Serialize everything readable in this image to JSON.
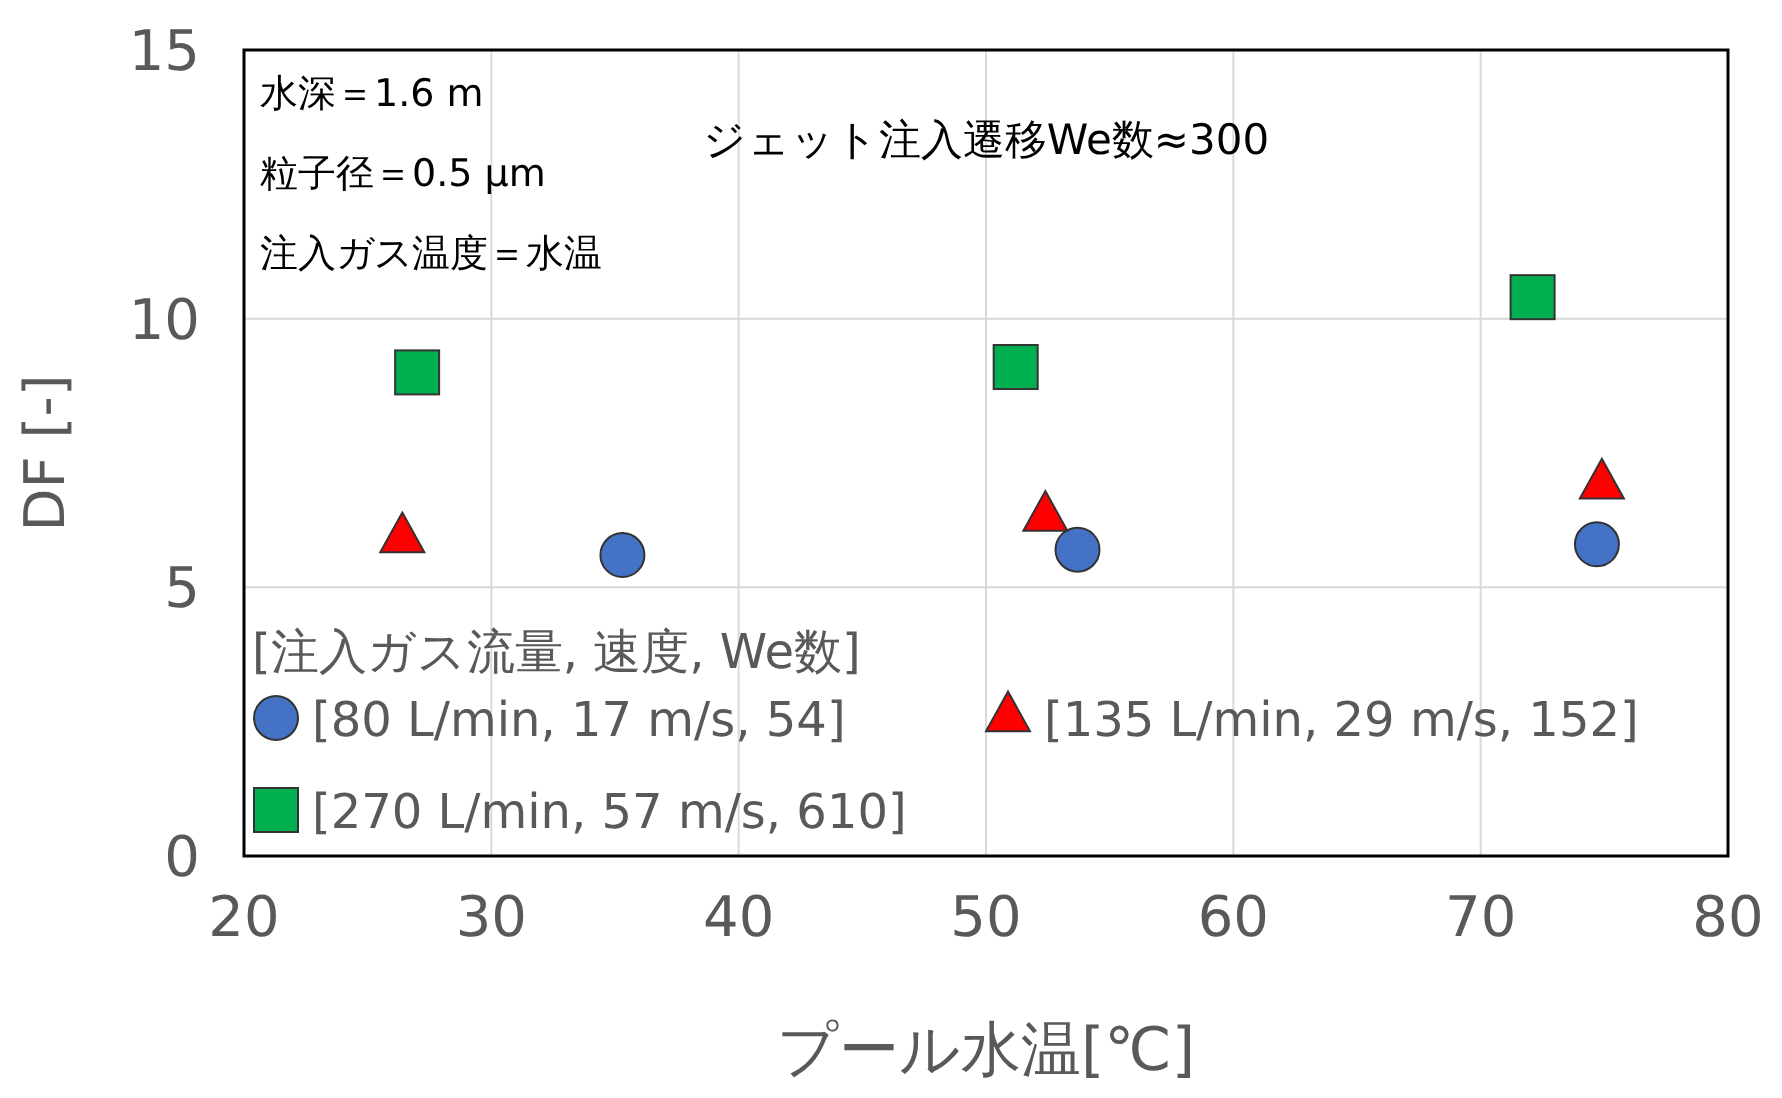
{
  "chart_data": {
    "type": "scatter",
    "xlabel": "プール水温[℃]",
    "ylabel": "DF [-]",
    "xlim": [
      20,
      80
    ],
    "ylim": [
      0,
      15
    ],
    "xticks": [
      20,
      30,
      40,
      50,
      60,
      70,
      80
    ],
    "yticks": [
      0,
      5,
      10,
      15
    ],
    "grid": true,
    "legend": "bottom left",
    "legend_title": "[注入ガス流量, 速度, We数]",
    "annotations": [
      "水深＝1.6 m",
      "粒子径＝0.5 μm",
      "注入ガス温度＝水温",
      "ジェット注入遷移We数≈300"
    ],
    "series": [
      {
        "name": "[80 L/min, 17 m/s, 54]",
        "color": "#4472c4",
        "marker": "circle",
        "x": [
          35.3,
          53.7,
          74.7
        ],
        "values": [
          5.6,
          5.7,
          5.8
        ]
      },
      {
        "name": "[135 L/min, 29 m/s, 152]",
        "color": "#ff0000",
        "marker": "triangle",
        "x": [
          26.4,
          52.4,
          74.9
        ],
        "values": [
          5.9,
          6.3,
          6.9
        ]
      },
      {
        "name": "[270 L/min, 57 m/s, 610]",
        "color": "#00b050",
        "marker": "square",
        "x": [
          27.0,
          51.2,
          72.1
        ],
        "values": [
          9.0,
          9.1,
          10.4
        ]
      }
    ]
  }
}
